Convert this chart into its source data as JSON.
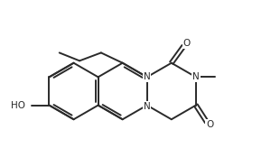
{
  "bg_color": "#ffffff",
  "line_color": "#2a2a2a",
  "line_width": 1.4,
  "font_size": 7.5,
  "figsize": [
    3.0,
    1.85
  ],
  "dpi": 100,
  "xlim": [
    0,
    10
  ],
  "ylim": [
    0,
    6.17
  ]
}
